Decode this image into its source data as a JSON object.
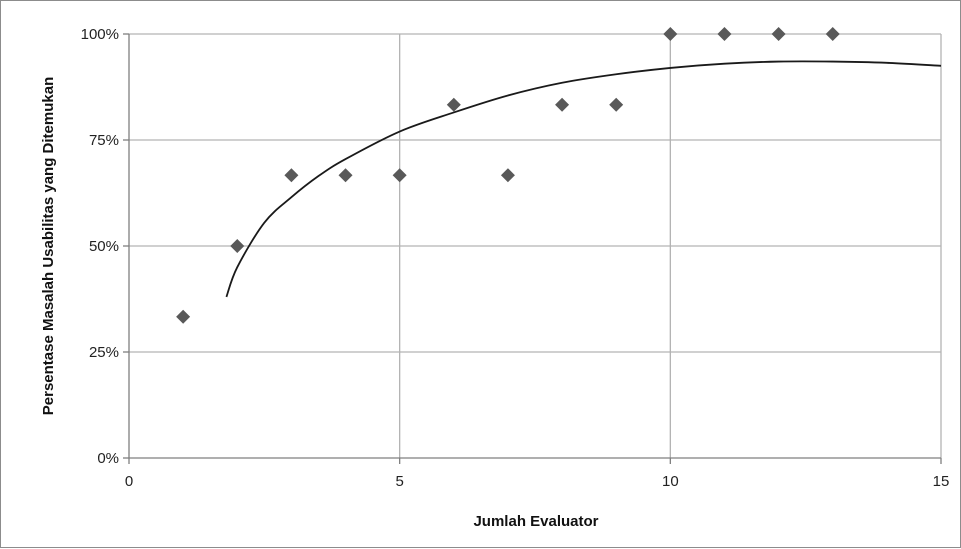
{
  "chart_data": {
    "type": "scatter",
    "title": "",
    "xlabel": "Jumlah Evaluator",
    "ylabel": "Persentase Masalah Usabilitas yang Ditemukan",
    "xlim": [
      0,
      15
    ],
    "ylim": [
      0,
      1
    ],
    "x_ticks": [
      0,
      5,
      10,
      15
    ],
    "x_tick_labels": [
      "0",
      "5",
      "10",
      "15"
    ],
    "y_ticks": [
      0,
      0.25,
      0.5,
      0.75,
      1
    ],
    "y_tick_labels": [
      "0%",
      "25%",
      "50%",
      "75%",
      "100%"
    ],
    "grid": true,
    "legend": "none",
    "marker": "diamond",
    "colors": {
      "points": "#595959",
      "trendline": "#1a1a1a",
      "grid": "#b3b3b3"
    },
    "series": [
      {
        "x": [
          1,
          2,
          3,
          4,
          5,
          6,
          7,
          8,
          9,
          10,
          11,
          12,
          13
        ],
        "y": [
          0.333,
          0.5,
          0.667,
          0.667,
          0.667,
          0.833,
          0.667,
          0.833,
          0.833,
          1.0,
          1.0,
          1.0,
          1.0
        ]
      }
    ],
    "trendline": {
      "type": "curve",
      "points": [
        [
          1.8,
          0.38
        ],
        [
          2.0,
          0.45
        ],
        [
          2.5,
          0.555
        ],
        [
          3.0,
          0.615
        ],
        [
          3.5,
          0.665
        ],
        [
          4.0,
          0.705
        ],
        [
          5.0,
          0.77
        ],
        [
          6.0,
          0.815
        ],
        [
          7.0,
          0.855
        ],
        [
          8.0,
          0.885
        ],
        [
          9.0,
          0.905
        ],
        [
          10.0,
          0.92
        ],
        [
          11.0,
          0.93
        ],
        [
          12.0,
          0.935
        ],
        [
          13.0,
          0.935
        ],
        [
          14.0,
          0.932
        ],
        [
          15.0,
          0.925
        ]
      ]
    }
  }
}
